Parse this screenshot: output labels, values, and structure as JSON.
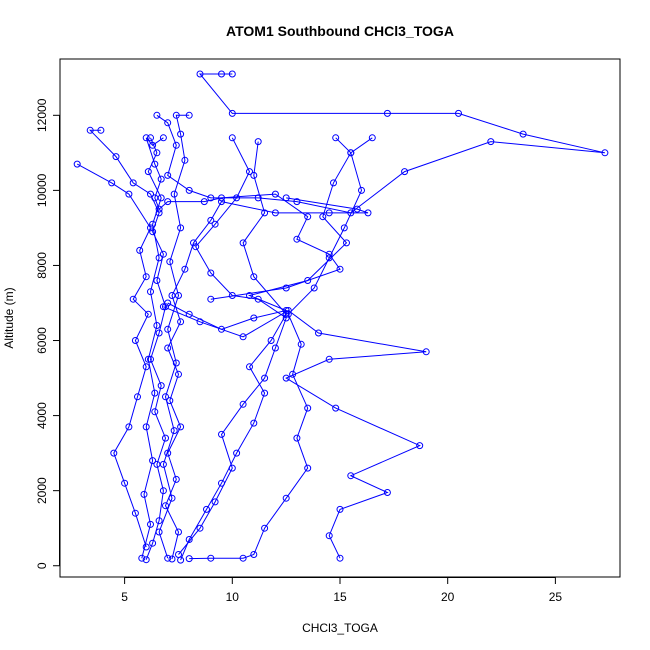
{
  "chart_data": {
    "type": "line",
    "title": "ATOM1 Southbound CHCl3_TOGA",
    "xlabel": "CHCl3_TOGA",
    "ylabel": "Altitude (m)",
    "xlim": [
      2.0,
      28.0
    ],
    "ylim": [
      -300,
      13500
    ],
    "xticks": [
      5,
      10,
      15,
      20,
      25
    ],
    "yticks": [
      0,
      2000,
      4000,
      6000,
      8000,
      10000,
      12000
    ],
    "ytick_labels": [
      "0",
      "2000",
      "4000",
      "6000",
      "8000",
      "10000",
      "12000"
    ],
    "series_color": "#0000ff",
    "marker": "open-circle",
    "grid": false,
    "series": [
      {
        "values": [
          {
            "x": 6.0,
            "y": 160
          },
          {
            "x": 6.3,
            "y": 600
          },
          {
            "x": 6.6,
            "y": 1200
          },
          {
            "x": 6.8,
            "y": 2000
          },
          {
            "x": 6.5,
            "y": 2700
          },
          {
            "x": 6.9,
            "y": 3400
          },
          {
            "x": 6.4,
            "y": 4100
          },
          {
            "x": 6.7,
            "y": 4800
          },
          {
            "x": 6.2,
            "y": 5500
          },
          {
            "x": 6.6,
            "y": 6200
          },
          {
            "x": 6.9,
            "y": 6900
          },
          {
            "x": 6.5,
            "y": 7600
          },
          {
            "x": 6.8,
            "y": 8300
          },
          {
            "x": 6.3,
            "y": 8900
          },
          {
            "x": 6.6,
            "y": 9400
          },
          {
            "x": 6.2,
            "y": 9900
          },
          {
            "x": 5.4,
            "y": 10200
          },
          {
            "x": 4.6,
            "y": 10900
          },
          {
            "x": 3.4,
            "y": 11600
          },
          {
            "x": 3.9,
            "y": 11600
          }
        ]
      },
      {
        "values": [
          {
            "x": 7.2,
            "y": 180
          },
          {
            "x": 7.5,
            "y": 900
          },
          {
            "x": 6.9,
            "y": 1600
          },
          {
            "x": 7.4,
            "y": 2300
          },
          {
            "x": 7.0,
            "y": 3000
          },
          {
            "x": 7.6,
            "y": 3700
          },
          {
            "x": 7.1,
            "y": 4400
          },
          {
            "x": 7.5,
            "y": 5100
          },
          {
            "x": 7.0,
            "y": 5800
          },
          {
            "x": 7.6,
            "y": 6500
          },
          {
            "x": 7.2,
            "y": 7200
          },
          {
            "x": 7.8,
            "y": 7900
          },
          {
            "x": 8.2,
            "y": 8600
          },
          {
            "x": 9.0,
            "y": 9200
          },
          {
            "x": 9.5,
            "y": 9700
          },
          {
            "x": 12.0,
            "y": 9400
          },
          {
            "x": 14.5,
            "y": 9400
          },
          {
            "x": 16.3,
            "y": 9400
          },
          {
            "x": 15.8,
            "y": 9500
          },
          {
            "x": 12.5,
            "y": 9800
          }
        ]
      },
      {
        "values": [
          {
            "x": 6.5,
            "y": 12000
          },
          {
            "x": 7.0,
            "y": 11800
          },
          {
            "x": 7.4,
            "y": 11200
          },
          {
            "x": 7.0,
            "y": 10400
          },
          {
            "x": 8.0,
            "y": 10000
          },
          {
            "x": 9.0,
            "y": 9800
          },
          {
            "x": 11.2,
            "y": 9800
          },
          {
            "x": 13.0,
            "y": 9700
          },
          {
            "x": 15.5,
            "y": 9400
          },
          {
            "x": 18.0,
            "y": 10500
          },
          {
            "x": 22.0,
            "y": 11300
          },
          {
            "x": 27.3,
            "y": 11000
          },
          {
            "x": 23.5,
            "y": 11500
          },
          {
            "x": 20.5,
            "y": 12050
          },
          {
            "x": 17.2,
            "y": 12050
          },
          {
            "x": 10.0,
            "y": 12050
          },
          {
            "x": 8.5,
            "y": 13100
          },
          {
            "x": 9.5,
            "y": 13100
          },
          {
            "x": 10.0,
            "y": 13100
          }
        ]
      },
      {
        "values": [
          {
            "x": 6.8,
            "y": 6900
          },
          {
            "x": 8.5,
            "y": 6500
          },
          {
            "x": 10.5,
            "y": 6100
          },
          {
            "x": 12.6,
            "y": 6800
          },
          {
            "x": 14.0,
            "y": 6200
          },
          {
            "x": 19.0,
            "y": 5700
          },
          {
            "x": 14.5,
            "y": 5500
          },
          {
            "x": 12.5,
            "y": 5000
          },
          {
            "x": 14.8,
            "y": 4200
          },
          {
            "x": 18.7,
            "y": 3200
          },
          {
            "x": 15.5,
            "y": 2400
          },
          {
            "x": 17.2,
            "y": 1950
          },
          {
            "x": 15.0,
            "y": 1500
          },
          {
            "x": 14.5,
            "y": 800
          },
          {
            "x": 15.0,
            "y": 200
          }
        ]
      },
      {
        "values": [
          {
            "x": 7.5,
            "y": 300
          },
          {
            "x": 8.5,
            "y": 1000
          },
          {
            "x": 9.2,
            "y": 1700
          },
          {
            "x": 10.0,
            "y": 2600
          },
          {
            "x": 9.5,
            "y": 3500
          },
          {
            "x": 10.5,
            "y": 4300
          },
          {
            "x": 11.5,
            "y": 5000
          },
          {
            "x": 12.0,
            "y": 5800
          },
          {
            "x": 12.5,
            "y": 6600
          },
          {
            "x": 11.2,
            "y": 7100
          },
          {
            "x": 10.0,
            "y": 7200
          },
          {
            "x": 9.0,
            "y": 7800
          },
          {
            "x": 8.3,
            "y": 8500
          },
          {
            "x": 9.2,
            "y": 9100
          },
          {
            "x": 10.2,
            "y": 9800
          },
          {
            "x": 10.8,
            "y": 10500
          },
          {
            "x": 10.0,
            "y": 11400
          }
        ]
      },
      {
        "values": [
          {
            "x": 6.0,
            "y": 500
          },
          {
            "x": 5.5,
            "y": 1400
          },
          {
            "x": 5.0,
            "y": 2200
          },
          {
            "x": 4.5,
            "y": 3000
          },
          {
            "x": 5.2,
            "y": 3700
          },
          {
            "x": 5.6,
            "y": 4500
          },
          {
            "x": 6.0,
            "y": 5300
          },
          {
            "x": 5.5,
            "y": 6000
          },
          {
            "x": 6.1,
            "y": 6700
          },
          {
            "x": 5.4,
            "y": 7100
          },
          {
            "x": 6.0,
            "y": 7700
          },
          {
            "x": 5.7,
            "y": 8400
          },
          {
            "x": 6.2,
            "y": 9000
          },
          {
            "x": 5.2,
            "y": 9900
          },
          {
            "x": 4.4,
            "y": 10200
          },
          {
            "x": 2.8,
            "y": 10700
          }
        ]
      },
      {
        "values": [
          {
            "x": 6.8,
            "y": 11400
          },
          {
            "x": 6.3,
            "y": 11200
          },
          {
            "x": 6.0,
            "y": 11400
          },
          {
            "x": 6.4,
            "y": 10700
          },
          {
            "x": 6.7,
            "y": 10300
          },
          {
            "x": 6.4,
            "y": 9800
          },
          {
            "x": 6.6,
            "y": 9500
          },
          {
            "x": 7.0,
            "y": 9700
          },
          {
            "x": 8.7,
            "y": 9700
          },
          {
            "x": 9.5,
            "y": 9800
          },
          {
            "x": 12.0,
            "y": 9900
          },
          {
            "x": 13.5,
            "y": 9300
          },
          {
            "x": 13.0,
            "y": 8700
          },
          {
            "x": 14.5,
            "y": 8300
          },
          {
            "x": 15.0,
            "y": 7900
          },
          {
            "x": 12.5,
            "y": 7400
          },
          {
            "x": 9.0,
            "y": 7100
          }
        ]
      },
      {
        "values": [
          {
            "x": 8.0,
            "y": 190
          },
          {
            "x": 9.0,
            "y": 200
          },
          {
            "x": 10.5,
            "y": 200
          },
          {
            "x": 11.0,
            "y": 300
          },
          {
            "x": 11.5,
            "y": 1000
          },
          {
            "x": 12.5,
            "y": 1800
          },
          {
            "x": 13.5,
            "y": 2600
          },
          {
            "x": 13.0,
            "y": 3400
          },
          {
            "x": 13.5,
            "y": 4200
          },
          {
            "x": 12.8,
            "y": 5100
          },
          {
            "x": 13.2,
            "y": 5900
          },
          {
            "x": 12.6,
            "y": 6700
          },
          {
            "x": 13.8,
            "y": 7400
          },
          {
            "x": 14.5,
            "y": 8200
          },
          {
            "x": 15.2,
            "y": 9000
          },
          {
            "x": 16.0,
            "y": 10000
          },
          {
            "x": 15.5,
            "y": 11000
          },
          {
            "x": 14.8,
            "y": 11400
          }
        ]
      },
      {
        "values": [
          {
            "x": 7.0,
            "y": 200
          },
          {
            "x": 6.6,
            "y": 900
          },
          {
            "x": 7.2,
            "y": 1800
          },
          {
            "x": 6.8,
            "y": 2700
          },
          {
            "x": 7.3,
            "y": 3600
          },
          {
            "x": 6.9,
            "y": 4500
          },
          {
            "x": 7.4,
            "y": 5400
          },
          {
            "x": 7.0,
            "y": 6300
          },
          {
            "x": 7.5,
            "y": 7200
          },
          {
            "x": 7.1,
            "y": 8100
          },
          {
            "x": 7.6,
            "y": 9000
          },
          {
            "x": 7.3,
            "y": 9900
          },
          {
            "x": 7.8,
            "y": 10800
          },
          {
            "x": 7.6,
            "y": 11500
          },
          {
            "x": 7.4,
            "y": 12000
          },
          {
            "x": 8.0,
            "y": 12000
          }
        ]
      },
      {
        "values": [
          {
            "x": 5.8,
            "y": 200
          },
          {
            "x": 6.2,
            "y": 1100
          },
          {
            "x": 5.9,
            "y": 1900
          },
          {
            "x": 6.3,
            "y": 2800
          },
          {
            "x": 6.0,
            "y": 3700
          },
          {
            "x": 6.4,
            "y": 4600
          },
          {
            "x": 6.1,
            "y": 5500
          },
          {
            "x": 6.5,
            "y": 6400
          },
          {
            "x": 6.2,
            "y": 7300
          },
          {
            "x": 6.6,
            "y": 8200
          },
          {
            "x": 6.3,
            "y": 9100
          },
          {
            "x": 6.7,
            "y": 9800
          },
          {
            "x": 6.1,
            "y": 10500
          },
          {
            "x": 6.5,
            "y": 11000
          },
          {
            "x": 6.2,
            "y": 11400
          }
        ]
      },
      {
        "values": [
          {
            "x": 7.6,
            "y": 150
          },
          {
            "x": 8.0,
            "y": 700
          },
          {
            "x": 8.8,
            "y": 1500
          },
          {
            "x": 9.5,
            "y": 2200
          },
          {
            "x": 10.2,
            "y": 3000
          },
          {
            "x": 11.0,
            "y": 3800
          },
          {
            "x": 11.5,
            "y": 4600
          },
          {
            "x": 10.8,
            "y": 5300
          },
          {
            "x": 11.8,
            "y": 6000
          },
          {
            "x": 12.5,
            "y": 6700
          },
          {
            "x": 11.0,
            "y": 7700
          },
          {
            "x": 10.5,
            "y": 8600
          },
          {
            "x": 11.5,
            "y": 9400
          },
          {
            "x": 11.0,
            "y": 10400
          },
          {
            "x": 11.2,
            "y": 11300
          }
        ]
      },
      {
        "values": [
          {
            "x": 7.0,
            "y": 7000
          },
          {
            "x": 8.0,
            "y": 6700
          },
          {
            "x": 9.5,
            "y": 6300
          },
          {
            "x": 11.0,
            "y": 6600
          },
          {
            "x": 12.5,
            "y": 6800
          },
          {
            "x": 10.8,
            "y": 7200
          },
          {
            "x": 13.5,
            "y": 7600
          },
          {
            "x": 15.3,
            "y": 8600
          },
          {
            "x": 14.2,
            "y": 9300
          },
          {
            "x": 14.7,
            "y": 10200
          },
          {
            "x": 15.5,
            "y": 11000
          },
          {
            "x": 16.5,
            "y": 11400
          }
        ]
      }
    ]
  }
}
